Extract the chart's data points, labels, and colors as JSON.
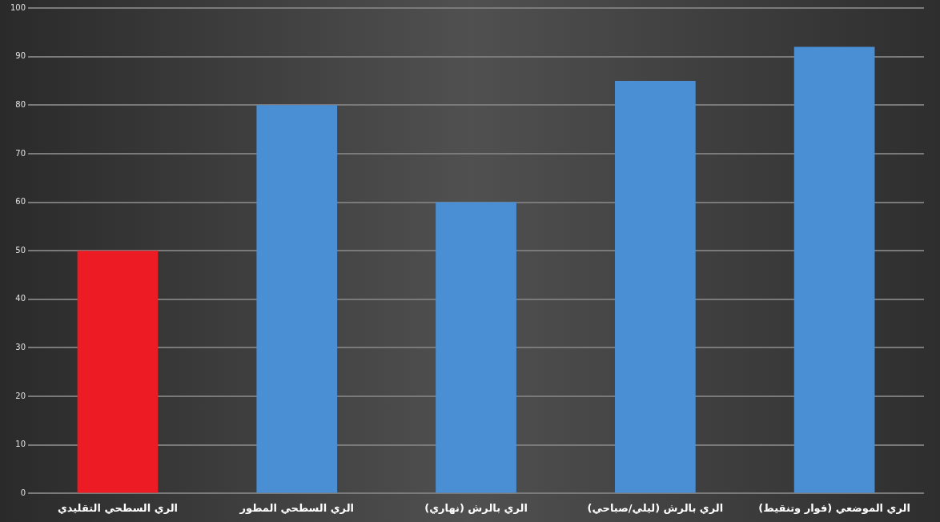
{
  "chart_data": {
    "type": "bar",
    "categories": [
      "الري السطحي التقليدي",
      "الري السطحي المطور",
      "الري بالرش (نهاري)",
      "الري بالرش (ليلي/صباحي)",
      "الري الموضعي (فوار وتنقيط)"
    ],
    "values": [
      50,
      80,
      60,
      85,
      92
    ],
    "colors": [
      "#ed1c24",
      "#4a8fd4",
      "#4a8fd4",
      "#4a8fd4",
      "#4a8fd4"
    ],
    "ylim": [
      0,
      100
    ],
    "yticks": [
      0,
      10,
      20,
      30,
      40,
      50,
      60,
      70,
      80,
      90,
      100
    ],
    "grid": "y"
  }
}
